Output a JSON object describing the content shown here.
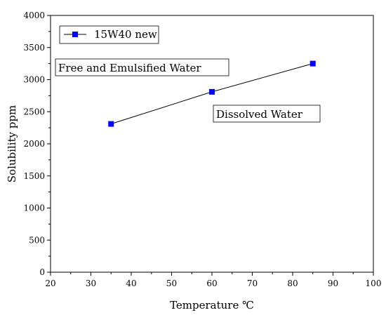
{
  "chart_data": {
    "type": "line",
    "title": "",
    "xlabel": "Temperature ℃",
    "ylabel": "Solubility ppm",
    "xlim": [
      20,
      100
    ],
    "ylim": [
      0,
      4000
    ],
    "x_ticks": [
      20,
      30,
      40,
      50,
      60,
      70,
      80,
      90,
      100
    ],
    "y_ticks": [
      0,
      500,
      1000,
      1500,
      2000,
      2500,
      3000,
      3500,
      4000
    ],
    "grid": false,
    "legend_position": "top-left",
    "series": [
      {
        "name": "15W40 new",
        "x": [
          35,
          60,
          85
        ],
        "y": [
          2310,
          2810,
          3250
        ],
        "marker": "square",
        "marker_color": "#0000ff",
        "line_color": "#000000"
      }
    ],
    "annotations": [
      {
        "text": "Free and Emulsified Water"
      },
      {
        "text": "Dissolved Water"
      }
    ]
  }
}
